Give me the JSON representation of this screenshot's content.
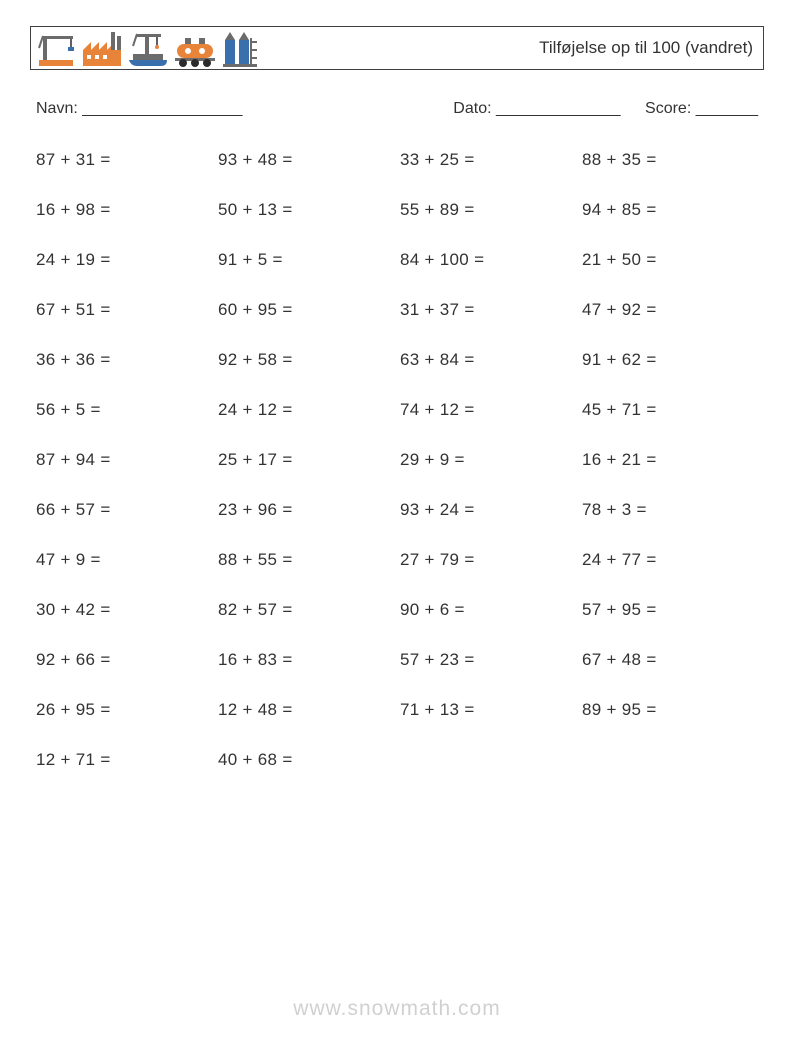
{
  "header": {
    "title": "Tilføjelse op til 100 (vandret)"
  },
  "info": {
    "name_label": "Navn: __________________",
    "date_label": "Dato: ______________",
    "score_label": "Score: _______"
  },
  "watermark": "www.snowmath.com",
  "grid": {
    "columns": 4,
    "rows": 13
  },
  "problems": [
    "87 + 31 =",
    "93 + 48 =",
    "33 + 25 =",
    "88 + 35 =",
    "16 + 98 =",
    "50 + 13 =",
    "55 + 89 =",
    "94 + 85 =",
    "24 + 19 =",
    "91 + 5 =",
    "84 + 100 =",
    "21 + 50 =",
    "67 + 51 =",
    "60 + 95 =",
    "31 + 37 =",
    "47 + 92 =",
    "36 + 36 =",
    "92 + 58 =",
    "63 + 84 =",
    "91 + 62 =",
    "56 + 5 =",
    "24 + 12 =",
    "74 + 12 =",
    "45 + 71 =",
    "87 + 94 =",
    "25 + 17 =",
    "29 + 9 =",
    "16 + 21 =",
    "66 + 57 =",
    "23 + 96 =",
    "93 + 24 =",
    "78 + 3 =",
    "47 + 9 =",
    "88 + 55 =",
    "27 + 79 =",
    "24 + 77 =",
    "30 + 42 =",
    "82 + 57 =",
    "90 + 6 =",
    "57 + 95 =",
    "92 + 66 =",
    "16 + 83 =",
    "57 + 23 =",
    "67 + 48 =",
    "26 + 95 =",
    "12 + 48 =",
    "71 + 13 =",
    "89 + 95 =",
    "12 + 71 =",
    "40 + 68 =",
    "",
    ""
  ],
  "colors": {
    "text": "#333333",
    "border": "#404040",
    "background": "#ffffff",
    "watermark": "rgba(120,120,120,0.35)",
    "icon_orange": "#e8833a",
    "icon_blue": "#3a6fae",
    "icon_gray": "#6b6b6b",
    "icon_dark": "#2b2b2b"
  },
  "typography": {
    "title_fontsize": 17,
    "body_fontsize": 17,
    "info_fontsize": 16,
    "watermark_fontsize": 21
  }
}
